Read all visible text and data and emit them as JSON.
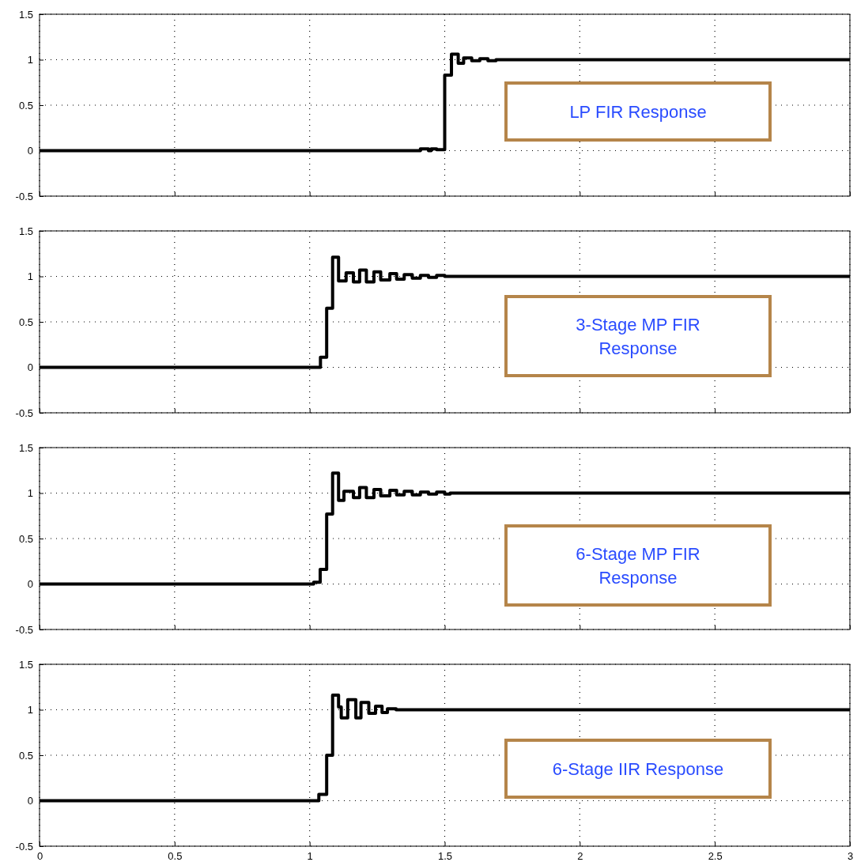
{
  "chart_data": [
    {
      "type": "step",
      "x": [
        0,
        1.41,
        1.44,
        1.45,
        1.47,
        1.5,
        1.525,
        1.55,
        1.57,
        1.6,
        1.63,
        1.66,
        1.69,
        3
      ],
      "series": [
        {
          "color": "#000000",
          "values": [
            0,
            0.02,
            0,
            0.02,
            0.01,
            0.83,
            1.06,
            0.96,
            1.02,
            0.99,
            1.01,
            0.99,
            1,
            1
          ]
        }
      ],
      "xlim": [
        0,
        3
      ],
      "xticks": [
        0,
        0.5,
        1,
        1.5,
        2,
        2.5,
        3
      ],
      "ylim": [
        -0.5,
        1.5
      ],
      "yticks": [
        -0.5,
        0,
        0.5,
        1,
        1.5
      ],
      "grid": true,
      "tick_labels": "y",
      "annotations": [
        "LP FIR Response"
      ]
    },
    {
      "type": "step",
      "x": [
        0,
        1.04,
        1.063,
        1.085,
        1.107,
        1.135,
        1.162,
        1.185,
        1.21,
        1.238,
        1.263,
        1.297,
        1.322,
        1.35,
        1.38,
        1.41,
        1.44,
        1.47,
        1.5,
        3
      ],
      "series": [
        {
          "color": "#000000",
          "values": [
            0,
            0.11,
            0.65,
            1.21,
            0.95,
            1.04,
            0.94,
            1.07,
            0.94,
            1.05,
            0.96,
            1.03,
            0.97,
            1.02,
            0.98,
            1.01,
            0.99,
            1.01,
            1,
            1
          ]
        }
      ],
      "xlim": [
        0,
        3
      ],
      "xticks": [
        0,
        0.5,
        1,
        1.5,
        2,
        2.5,
        3
      ],
      "ylim": [
        -0.5,
        1.5
      ],
      "yticks": [
        -0.5,
        0,
        0.5,
        1,
        1.5
      ],
      "grid": true,
      "tick_labels": "y",
      "annotations": [
        "3-Stage MP FIR Response"
      ]
    },
    {
      "type": "step",
      "x": [
        0,
        1.015,
        1.039,
        1.063,
        1.085,
        1.107,
        1.127,
        1.162,
        1.185,
        1.21,
        1.238,
        1.263,
        1.297,
        1.322,
        1.35,
        1.38,
        1.41,
        1.44,
        1.47,
        1.5,
        1.52,
        3
      ],
      "series": [
        {
          "color": "#000000",
          "values": [
            0,
            0.02,
            0.16,
            0.77,
            1.22,
            0.92,
            1.02,
            0.95,
            1.06,
            0.95,
            1.04,
            0.97,
            1.03,
            0.98,
            1.02,
            0.98,
            1.01,
            0.99,
            1.01,
            0.99,
            1,
            1
          ]
        }
      ],
      "xlim": [
        0,
        3
      ],
      "xticks": [
        0,
        0.5,
        1,
        1.5,
        2,
        2.5,
        3
      ],
      "ylim": [
        -0.5,
        1.5
      ],
      "yticks": [
        -0.5,
        0,
        0.5,
        1,
        1.5
      ],
      "grid": true,
      "tick_labels": "y",
      "annotations": [
        "6-Stage MP FIR Response"
      ]
    },
    {
      "type": "step",
      "x": [
        0,
        1.034,
        1.063,
        1.085,
        1.107,
        1.117,
        1.141,
        1.171,
        1.19,
        1.219,
        1.244,
        1.268,
        1.288,
        1.32,
        3
      ],
      "series": [
        {
          "color": "#000000",
          "values": [
            0,
            0.07,
            0.5,
            1.16,
            1.03,
            0.91,
            1.11,
            0.91,
            1.08,
            0.96,
            1.04,
            0.97,
            1.01,
            1,
            1
          ]
        }
      ],
      "xlim": [
        0,
        3
      ],
      "xticks": [
        0,
        0.5,
        1,
        1.5,
        2,
        2.5,
        3
      ],
      "ylim": [
        -0.5,
        1.5
      ],
      "yticks": [
        -0.5,
        0,
        0.5,
        1,
        1.5
      ],
      "grid": true,
      "annotations": [
        "6-Stage IIR Response"
      ]
    }
  ]
}
